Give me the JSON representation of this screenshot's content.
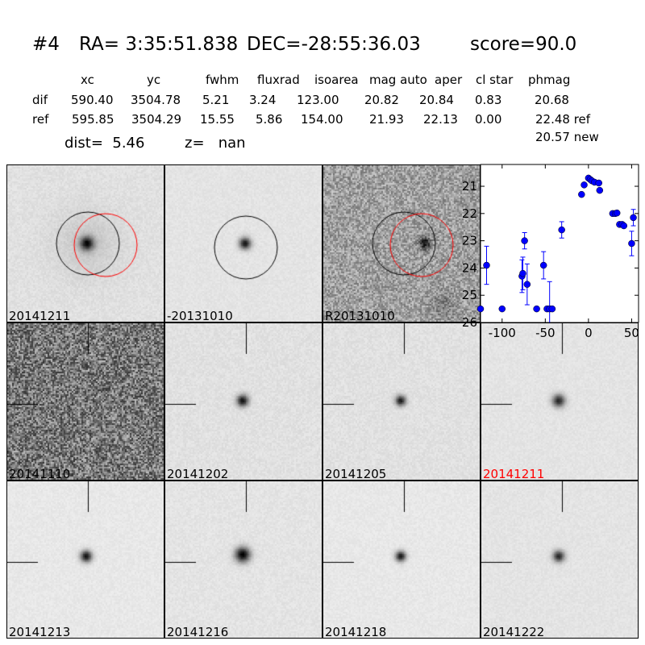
{
  "header": {
    "title": {
      "id": "#4",
      "ra": "RA= 3:35:51.838",
      "dec": "DEC=-28:55:36.03",
      "score": "score=90.0"
    },
    "columns": [
      "xc",
      "yc",
      "fwhm",
      "fluxrad",
      "isoarea",
      "mag auto",
      "aper",
      "cl star",
      "phmag"
    ],
    "rows": [
      {
        "label": "dif",
        "values": [
          "590.40",
          "3504.78",
          "5.21",
          "3.24",
          "123.00",
          "20.82",
          "20.84",
          "0.83",
          "20.68"
        ]
      },
      {
        "label": "ref",
        "values": [
          "595.85",
          "3504.29",
          "15.55",
          "5.86",
          "154.00",
          "21.93",
          "22.13",
          "0.00",
          "22.48 ref"
        ]
      }
    ],
    "extra_phmag": "20.57 new",
    "dist": "dist=  5.46",
    "z": "z=   nan"
  },
  "stamps": [
    {
      "label": "20141211",
      "color": "#000000"
    },
    {
      "label": "-20131010",
      "color": "#000000"
    },
    {
      "label": "R20131010",
      "color": "#000000"
    },
    {
      "label": "20141110",
      "color": "#000000"
    },
    {
      "label": "20141202",
      "color": "#000000"
    },
    {
      "label": "20141205",
      "color": "#000000"
    },
    {
      "label": "20141211",
      "color": "#ff0000"
    },
    {
      "label": "20141213",
      "color": "#000000"
    },
    {
      "label": "20141216",
      "color": "#000000"
    },
    {
      "label": "20141218",
      "color": "#000000"
    },
    {
      "label": "20141222",
      "color": "#000000"
    }
  ],
  "chart_data": {
    "type": "scatter",
    "title": "",
    "xlabel": "",
    "ylabel": "",
    "xlim": [
      -125,
      58
    ],
    "ylim": [
      26,
      20.2
    ],
    "y_inverted": true,
    "xticks": [
      "-100",
      "-50",
      "0",
      "50"
    ],
    "xtick_values": [
      -100,
      -50,
      0,
      50
    ],
    "yticks": [
      "21",
      "22",
      "23",
      "24",
      "25",
      "26"
    ],
    "ytick_values": [
      21,
      22,
      23,
      24,
      25,
      26
    ],
    "marker_color": "#0000ff",
    "grid": false,
    "points": [
      {
        "x": -125,
        "y": 25.5,
        "err": 0
      },
      {
        "x": -100,
        "y": 25.5,
        "err": 0
      },
      {
        "x": -118,
        "y": 23.9,
        "err": 0.7
      },
      {
        "x": -77,
        "y": 24.3,
        "err": 0.6
      },
      {
        "x": -76,
        "y": 24.2,
        "err": 0.6
      },
      {
        "x": -74,
        "y": 23.0,
        "err": 0.3
      },
      {
        "x": -71,
        "y": 24.6,
        "err": 0.75
      },
      {
        "x": -60,
        "y": 25.5,
        "err": 0
      },
      {
        "x": -52,
        "y": 23.9,
        "err": 0.5
      },
      {
        "x": -48,
        "y": 25.5,
        "err": 0
      },
      {
        "x": -45,
        "y": 25.5,
        "err": 1.0
      },
      {
        "x": -42,
        "y": 25.5,
        "err": 0
      },
      {
        "x": -31,
        "y": 22.6,
        "err": 0.3
      },
      {
        "x": -8,
        "y": 21.3,
        "err": 0
      },
      {
        "x": -5,
        "y": 20.95,
        "err": 0
      },
      {
        "x": 0,
        "y": 20.7,
        "err": 0
      },
      {
        "x": 2,
        "y": 20.75,
        "err": 0
      },
      {
        "x": 4,
        "y": 20.8,
        "err": 0
      },
      {
        "x": 7,
        "y": 20.85,
        "err": 0
      },
      {
        "x": 12,
        "y": 20.88,
        "err": 0
      },
      {
        "x": 13,
        "y": 21.15,
        "err": 0
      },
      {
        "x": 28,
        "y": 22.0,
        "err": 0
      },
      {
        "x": 31,
        "y": 22.0,
        "err": 0
      },
      {
        "x": 33,
        "y": 21.98,
        "err": 0
      },
      {
        "x": 36,
        "y": 22.4,
        "err": 0
      },
      {
        "x": 39,
        "y": 22.4,
        "err": 0
      },
      {
        "x": 41,
        "y": 22.45,
        "err": 0
      },
      {
        "x": 50,
        "y": 23.1,
        "err": 0.45
      },
      {
        "x": 52,
        "y": 22.15,
        "err": 0.3
      }
    ]
  }
}
